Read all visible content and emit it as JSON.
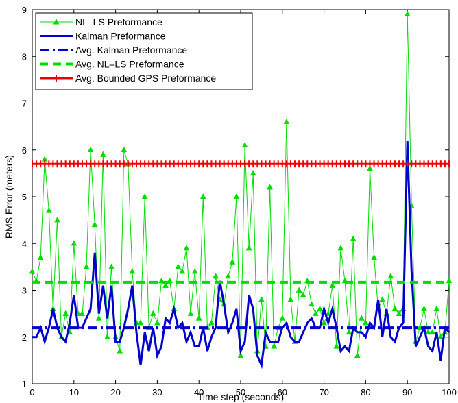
{
  "chart_data": {
    "type": "line",
    "title": "",
    "xlabel": "Time step (seconds)",
    "ylabel": "RMS Error (meters)",
    "xlim": [
      0,
      100
    ],
    "ylim": [
      1,
      9
    ],
    "xticks": [
      "0",
      "10",
      "20",
      "30",
      "40",
      "50",
      "60",
      "70",
      "80",
      "90",
      "100"
    ],
    "yticks": [
      "1",
      "2",
      "3",
      "4",
      "5",
      "6",
      "7",
      "8",
      "9"
    ],
    "grid": false,
    "legend_position": "top-left",
    "series": [
      {
        "name": "NL–LS Preformance",
        "color": "#00dd00",
        "style": "solid-triangle-markers",
        "x": [
          0,
          1,
          2,
          3,
          4,
          5,
          6,
          7,
          8,
          9,
          10,
          11,
          12,
          13,
          14,
          15,
          16,
          17,
          18,
          19,
          20,
          21,
          22,
          23,
          24,
          25,
          26,
          27,
          28,
          29,
          30,
          31,
          32,
          33,
          34,
          35,
          36,
          37,
          38,
          39,
          40,
          41,
          42,
          43,
          44,
          45,
          46,
          47,
          48,
          49,
          50,
          51,
          52,
          53,
          54,
          55,
          56,
          57,
          58,
          59,
          60,
          61,
          62,
          63,
          64,
          65,
          66,
          67,
          68,
          69,
          70,
          71,
          72,
          73,
          74,
          75,
          76,
          77,
          78,
          79,
          80,
          81,
          82,
          83,
          84,
          85,
          86,
          87,
          88,
          89,
          90,
          91,
          92,
          93,
          94,
          95,
          96,
          97,
          98,
          99,
          100
        ],
        "values": [
          3.4,
          3.2,
          3.7,
          5.8,
          4.7,
          2.6,
          4.5,
          2.0,
          2.5,
          2.1,
          4.0,
          2.5,
          2.5,
          3.5,
          6.0,
          4.4,
          2.4,
          5.9,
          2.0,
          3.5,
          2.0,
          1.7,
          6.0,
          5.7,
          3.4,
          2.3,
          2.3,
          5.0,
          2.2,
          2.5,
          2.3,
          3.2,
          3.1,
          3.2,
          2.6,
          3.5,
          3.4,
          3.9,
          2.5,
          3.4,
          2.4,
          5.0,
          2.2,
          2.3,
          3.3,
          2.8,
          2.7,
          3.3,
          3.6,
          5.0,
          1.6,
          6.1,
          3.9,
          5.5,
          1.7,
          2.8,
          1.8,
          5.2,
          1.8,
          2.2,
          2.4,
          6.6,
          2.8,
          1.9,
          3.0,
          2.9,
          3.2,
          2.7,
          2.5,
          2.6,
          2.3,
          2.5,
          3.1,
          1.8,
          3.9,
          3.2,
          2.1,
          4.1,
          1.6,
          2.4,
          2.3,
          5.6,
          3.7,
          2.6,
          2.8,
          2.5,
          3.3,
          2.6,
          2.5,
          2.6,
          8.9,
          4.8,
          1.9,
          2.2,
          2.6,
          2.1,
          2.1,
          2.6,
          2.0,
          2.1,
          3.2
        ]
      },
      {
        "name": "Kalman Preformance",
        "color": "#0000cc",
        "style": "solid",
        "x": [
          0,
          1,
          2,
          3,
          4,
          5,
          6,
          7,
          8,
          9,
          10,
          11,
          12,
          13,
          14,
          15,
          16,
          17,
          18,
          19,
          20,
          21,
          22,
          23,
          24,
          25,
          26,
          27,
          28,
          29,
          30,
          31,
          32,
          33,
          34,
          35,
          36,
          37,
          38,
          39,
          40,
          41,
          42,
          43,
          44,
          45,
          46,
          47,
          48,
          49,
          50,
          51,
          52,
          53,
          54,
          55,
          56,
          57,
          58,
          59,
          60,
          61,
          62,
          63,
          64,
          65,
          66,
          67,
          68,
          69,
          70,
          71,
          72,
          73,
          74,
          75,
          76,
          77,
          78,
          79,
          80,
          81,
          82,
          83,
          84,
          85,
          86,
          87,
          88,
          89,
          90,
          91,
          92,
          93,
          94,
          95,
          96,
          97,
          98,
          99,
          100
        ],
        "values": [
          2.0,
          2.0,
          2.2,
          1.9,
          2.2,
          2.6,
          2.2,
          2.0,
          1.9,
          2.3,
          2.9,
          2.2,
          2.2,
          2.4,
          2.6,
          3.8,
          2.5,
          3.1,
          2.4,
          3.1,
          1.9,
          1.9,
          2.2,
          2.6,
          3.1,
          2.1,
          1.4,
          2.1,
          1.7,
          2.2,
          1.6,
          1.8,
          2.4,
          2.3,
          2.6,
          2.2,
          2.3,
          1.9,
          2.1,
          1.8,
          1.8,
          2.2,
          1.7,
          2.0,
          2.2,
          3.2,
          2.7,
          2.1,
          2.3,
          2.6,
          1.7,
          1.9,
          2.9,
          2.6,
          1.6,
          1.4,
          2.1,
          1.9,
          1.9,
          1.9,
          2.2,
          2.3,
          2.0,
          1.9,
          1.9,
          2.1,
          2.3,
          2.4,
          2.2,
          2.2,
          2.6,
          2.3,
          2.6,
          2.2,
          1.7,
          1.8,
          1.7,
          2.2,
          2.1,
          2.1,
          2.0,
          2.3,
          2.2,
          2.8,
          2.0,
          2.6,
          2.0,
          1.9,
          2.2,
          2.3,
          6.2,
          3.4,
          1.8,
          2.0,
          2.2,
          1.8,
          1.7,
          2.1,
          1.5,
          2.2,
          2.1
        ]
      },
      {
        "name": "Avg. Kalman Preformance",
        "color": "#0000cc",
        "style": "dash-dot",
        "x": [
          0,
          100
        ],
        "values": [
          2.2,
          2.2
        ]
      },
      {
        "name": "Avg. NL–LS Preformance",
        "color": "#00dd00",
        "style": "dashed",
        "x": [
          0,
          100
        ],
        "values": [
          3.17,
          3.17
        ]
      },
      {
        "name": "Avg. Bounded GPS Preformance",
        "color": "#ee0000",
        "style": "solid-plus-markers",
        "x": [
          0,
          100
        ],
        "values": [
          5.7,
          5.7
        ]
      }
    ]
  }
}
